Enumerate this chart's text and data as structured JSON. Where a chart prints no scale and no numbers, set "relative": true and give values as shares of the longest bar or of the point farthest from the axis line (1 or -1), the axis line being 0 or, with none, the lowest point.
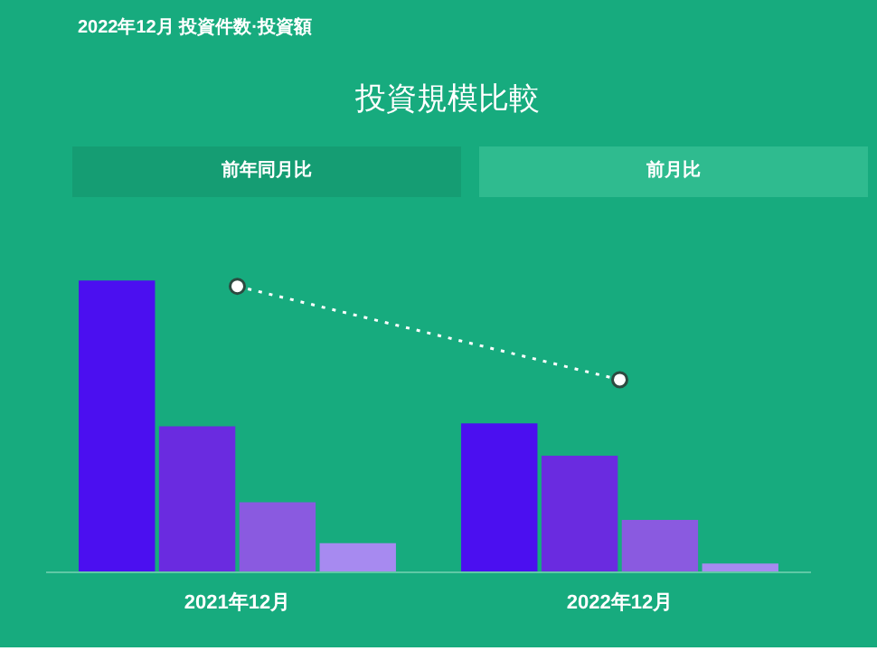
{
  "chart_data": {
    "type": "bar",
    "title": "投資規模比較",
    "subtitle": "2022年12月  投資件数·投資額",
    "annotations": [
      "前年同月比",
      "前月比"
    ],
    "categories": [
      "2021年12月",
      "2022年12月"
    ],
    "relative": true,
    "series": [
      {
        "color": "#4b0ff0",
        "values": [
          1,
          0.51
        ]
      },
      {
        "color": "#6a2be0",
        "values": [
          0.5,
          0.4
        ]
      },
      {
        "color": "#8a5ae0",
        "values": [
          0.24,
          0.18
        ]
      },
      {
        "color": "#a78af0",
        "values": [
          0.1,
          0.03
        ]
      },
      {
        "type": "line",
        "color": "#ffffff",
        "values": [
          0.98,
          0.66
        ],
        "marker": "circle",
        "line_style": "dotted"
      }
    ]
  }
}
